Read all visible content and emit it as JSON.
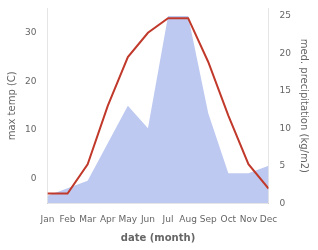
{
  "chart_data": {
    "type": "line",
    "categories": [
      "Jan",
      "Feb",
      "Mar",
      "Apr",
      "May",
      "Jun",
      "Jul",
      "Aug",
      "Sep",
      "Oct",
      "Nov",
      "Dec"
    ],
    "series": [
      {
        "type": "area",
        "axis": "y2",
        "color": "#bdc9f0",
        "values": [
          1,
          2,
          3,
          8,
          13,
          10,
          25,
          25,
          12,
          4,
          4,
          5
        ]
      },
      {
        "type": "line",
        "color": "#c0392b",
        "values": [
          -3,
          -3,
          3,
          15,
          25,
          30,
          33,
          33,
          24,
          13,
          3,
          -2
        ]
      }
    ],
    "xlabel": "date (month)",
    "ylabel": "max temp (C)",
    "y2label": "med. precipitation (kg/m2)",
    "ylim": [
      -5,
      35
    ],
    "yticks": [
      0,
      10,
      20,
      30
    ],
    "y2lim": [
      0,
      26
    ],
    "y2ticks": [
      0,
      5,
      10,
      15,
      20,
      25
    ],
    "grid": false
  }
}
